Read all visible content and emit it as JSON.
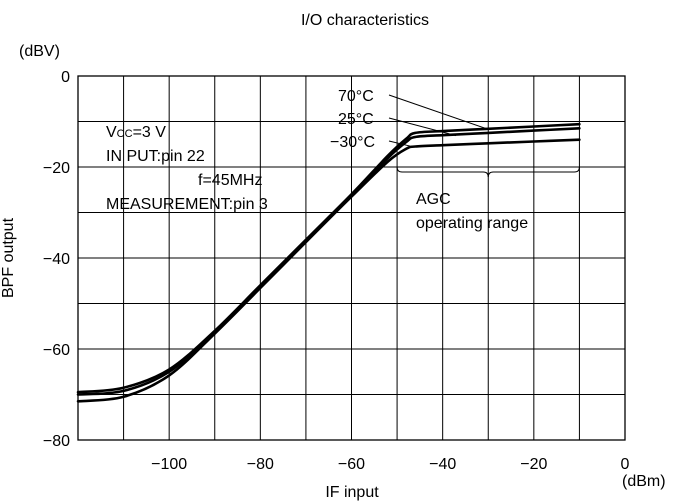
{
  "chart_data": {
    "type": "line",
    "title": "I/O characteristics",
    "xlabel": "IF input",
    "ylabel": "BPF output",
    "x_unit": "(dBm)",
    "y_unit": "(dBV)",
    "xlim": [
      -120,
      0
    ],
    "ylim": [
      -80,
      0
    ],
    "x_ticks": [
      -100,
      -80,
      -60,
      -40,
      -20,
      0
    ],
    "y_ticks": [
      0,
      -20,
      -40,
      -60,
      -80
    ],
    "x_tick_labels": [
      "−100",
      "−80",
      "−60",
      "−40",
      "−20",
      "0"
    ],
    "y_tick_labels": [
      "0",
      "−20",
      "−40",
      "−60",
      "−80"
    ],
    "grid": true,
    "conditions": {
      "vcc_prefix": "V",
      "vcc_sub": "CC",
      "vcc_value": "=3 V",
      "input": "IN PUT:pin 22",
      "freq": "f=45MHz",
      "measurement": "MEASUREMENT:pin 3"
    },
    "agc_label": [
      "AGC",
      "operating range"
    ],
    "agc_range": [
      -50,
      -10
    ],
    "series": [
      {
        "name": "70°C",
        "x": [
          -120,
          -110,
          -100,
          -90,
          -80,
          -70,
          -60,
          -52,
          -48,
          -46,
          -40,
          -30,
          -20,
          -10
        ],
        "y": [
          -69.5,
          -68.5,
          -64.5,
          -56,
          -46,
          -36,
          -26,
          -17.5,
          -13.8,
          -12.5,
          -12.1,
          -11.6,
          -11.1,
          -10.6
        ]
      },
      {
        "name": "25°C",
        "x": [
          -120,
          -110,
          -100,
          -90,
          -80,
          -70,
          -60,
          -52,
          -48,
          -46,
          -40,
          -30,
          -20,
          -10
        ],
        "y": [
          -70,
          -69.2,
          -65,
          -56.3,
          -46.3,
          -36.2,
          -26.2,
          -18,
          -14.5,
          -13.4,
          -13,
          -12.5,
          -12,
          -11.5
        ]
      },
      {
        "name": "−30°C",
        "x": [
          -120,
          -110,
          -100,
          -90,
          -80,
          -70,
          -60,
          -52,
          -48,
          -46,
          -40,
          -30,
          -20,
          -10
        ],
        "y": [
          -71.5,
          -70.5,
          -65.8,
          -56.6,
          -46.6,
          -36.5,
          -26.5,
          -18.8,
          -16,
          -15.5,
          -15.2,
          -14.8,
          -14.4,
          -14
        ]
      }
    ]
  }
}
